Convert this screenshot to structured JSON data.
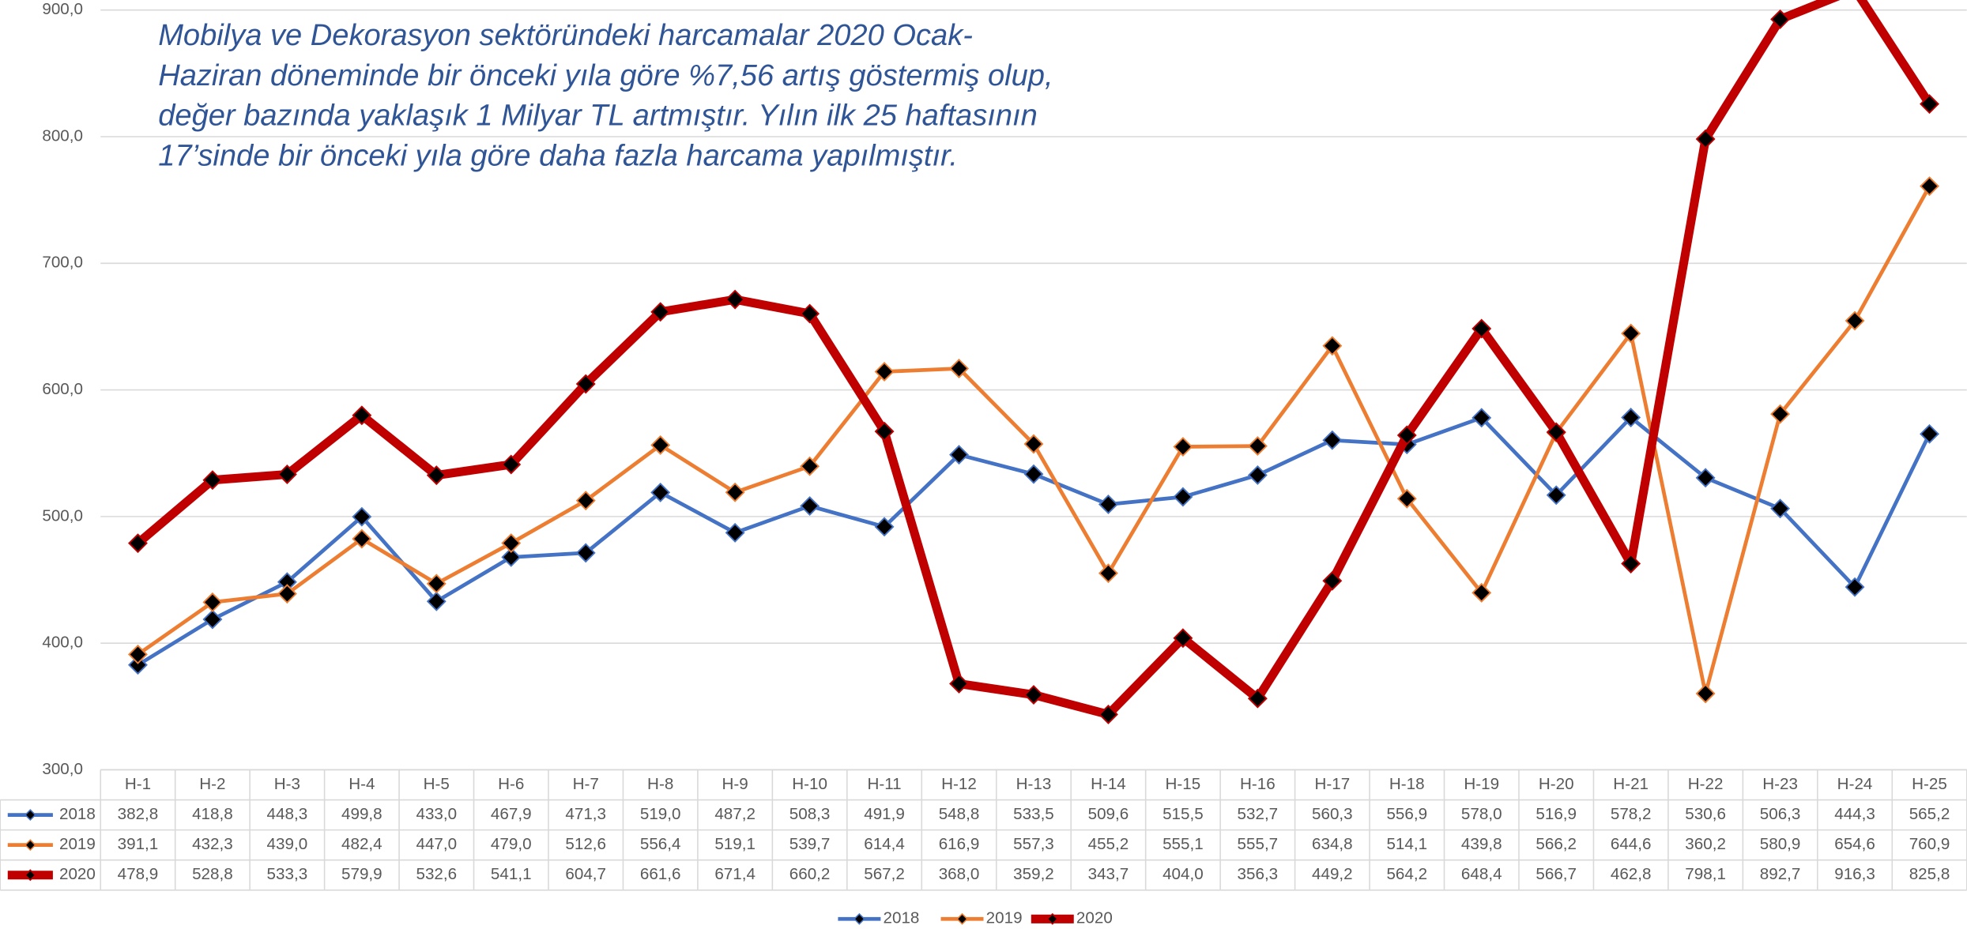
{
  "chart_data": {
    "type": "line",
    "annotation": [
      "Mobilya ve Dekorasyon sektöründeki harcamalar 2020 Ocak-",
      "Haziran döneminde bir önceki yıla göre %7,56 artış göstermiş olup,",
      "değer bazında yaklaşık 1 Milyar TL artmıştır. Yılın ilk 25 haftasının",
      "17’sinde bir önceki yıla göre daha fazla harcama yapılmıştır."
    ],
    "categories": [
      "H-1",
      "H-2",
      "H-3",
      "H-4",
      "H-5",
      "H-6",
      "H-7",
      "H-8",
      "H-9",
      "H-10",
      "H-11",
      "H-12",
      "H-13",
      "H-14",
      "H-15",
      "H-16",
      "H-17",
      "H-18",
      "H-19",
      "H-20",
      "H-21",
      "H-22",
      "H-23",
      "H-24",
      "H-25"
    ],
    "series": [
      {
        "name": "2018",
        "color": "#4472c4",
        "line_width": 3,
        "values": [
          382.8,
          418.8,
          448.3,
          499.8,
          433.0,
          467.9,
          471.3,
          519.0,
          487.2,
          508.3,
          491.9,
          548.8,
          533.5,
          509.6,
          515.5,
          532.7,
          560.3,
          556.9,
          578.0,
          516.9,
          578.2,
          530.6,
          506.3,
          444.3,
          565.2
        ],
        "value_labels": [
          "382,8",
          "418,8",
          "448,3",
          "499,8",
          "433,0",
          "467,9",
          "471,3",
          "519,0",
          "487,2",
          "508,3",
          "491,9",
          "548,8",
          "533,5",
          "509,6",
          "515,5",
          "532,7",
          "560,3",
          "556,9",
          "578,0",
          "516,9",
          "578,2",
          "530,6",
          "506,3",
          "444,3",
          "565,2"
        ]
      },
      {
        "name": "2019",
        "color": "#ed7d31",
        "line_width": 3,
        "values": [
          391.1,
          432.3,
          439.0,
          482.4,
          447.0,
          479.0,
          512.6,
          556.4,
          519.1,
          539.7,
          614.4,
          616.9,
          557.3,
          455.2,
          555.1,
          555.7,
          634.8,
          514.1,
          439.8,
          566.2,
          644.6,
          360.2,
          580.9,
          654.6,
          760.9
        ],
        "value_labels": [
          "391,1",
          "432,3",
          "439,0",
          "482,4",
          "447,0",
          "479,0",
          "512,6",
          "556,4",
          "519,1",
          "539,7",
          "614,4",
          "616,9",
          "557,3",
          "455,2",
          "555,1",
          "555,7",
          "634,8",
          "514,1",
          "439,8",
          "566,2",
          "644,6",
          "360,2",
          "580,9",
          "654,6",
          "760,9"
        ]
      },
      {
        "name": "2020",
        "color": "#c00000",
        "line_width": 7,
        "values": [
          478.9,
          528.8,
          533.3,
          579.9,
          532.6,
          541.1,
          604.7,
          661.6,
          671.4,
          660.2,
          567.2,
          368.0,
          359.2,
          343.7,
          404.0,
          356.3,
          449.2,
          564.2,
          648.4,
          566.7,
          462.8,
          798.1,
          892.7,
          916.3,
          825.8
        ],
        "value_labels": [
          "478,9",
          "528,8",
          "533,3",
          "579,9",
          "532,6",
          "541,1",
          "604,7",
          "661,6",
          "671,4",
          "660,2",
          "567,2",
          "368,0",
          "359,2",
          "343,7",
          "404,0",
          "356,3",
          "449,2",
          "564,2",
          "648,4",
          "566,7",
          "462,8",
          "798,1",
          "892,7",
          "916,3",
          "825,8"
        ]
      }
    ],
    "marker_color": "#000000",
    "ylim": [
      300,
      900
    ],
    "yticks": [
      {
        "value": 300,
        "label": "300,0"
      },
      {
        "value": 400,
        "label": "400,0"
      },
      {
        "value": 500,
        "label": "500,0"
      },
      {
        "value": 600,
        "label": "600,0"
      },
      {
        "value": 700,
        "label": "700,0"
      },
      {
        "value": 800,
        "label": "800,0"
      },
      {
        "value": 900,
        "label": "900,0"
      }
    ],
    "grid": true,
    "legend": "bottom"
  }
}
